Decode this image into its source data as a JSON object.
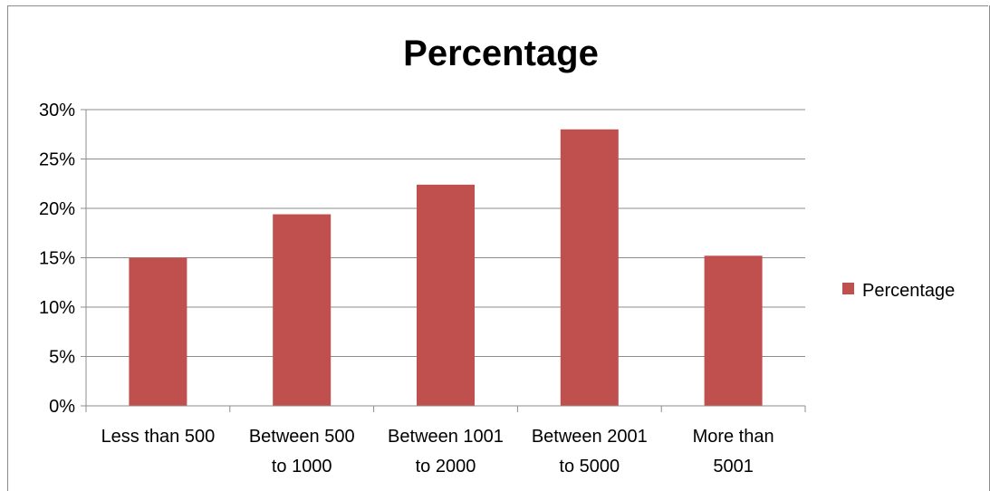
{
  "chart_data": {
    "type": "bar",
    "title": "Percentage",
    "categories": [
      [
        "Less than 500"
      ],
      [
        "Between 500",
        "to 1000"
      ],
      [
        "Between 1001",
        "to 2000"
      ],
      [
        "Between 2001",
        "to 5000"
      ],
      [
        "More than",
        "5001"
      ]
    ],
    "series": [
      {
        "name": "Percentage",
        "values": [
          15.0,
          19.4,
          22.4,
          28.0,
          15.2
        ]
      }
    ],
    "ylim": [
      0,
      30
    ],
    "yticks": [
      "0%",
      "5%",
      "10%",
      "15%",
      "20%",
      "25%",
      "30%"
    ],
    "grid": true,
    "legend": "right",
    "colors": {
      "bar": "#c0504d",
      "grid": "#8c8c8c"
    }
  }
}
